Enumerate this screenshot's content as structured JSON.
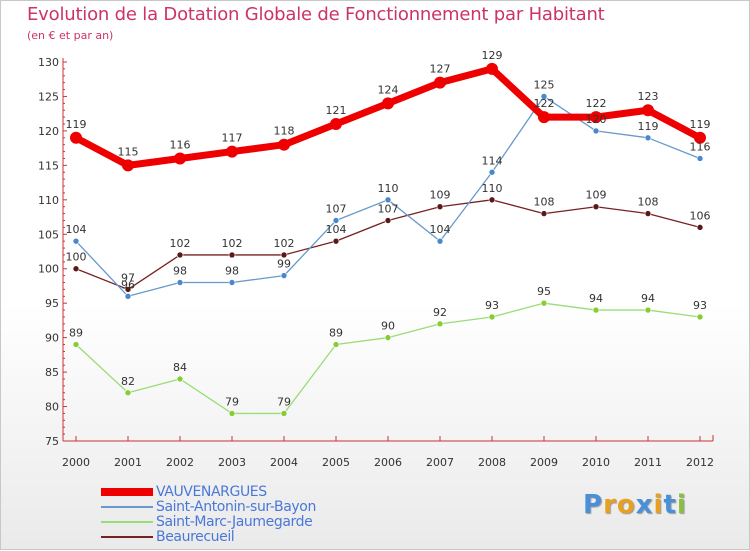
{
  "title": "Evolution de la Dotation Globale de Fonctionnement par Habitant",
  "subtitle": "(en € et par an)",
  "logo": {
    "text": "Proxiti",
    "letters": [
      "P",
      "r",
      "o",
      "x",
      "i",
      "t",
      "i"
    ],
    "colors": [
      "#4a90d9",
      "#e8a020",
      "#e8a020",
      "#4a90d9",
      "#e8a020",
      "#4a90d9",
      "#8ac040"
    ]
  },
  "chart_data": {
    "type": "line",
    "title": "Evolution de la Dotation Globale de Fonctionnement par Habitant",
    "subtitle": "(en € et par an)",
    "xlabel": "",
    "ylabel": "",
    "ylim": [
      75,
      130
    ],
    "yticks": [
      75,
      80,
      85,
      90,
      95,
      100,
      105,
      110,
      115,
      120,
      125,
      130
    ],
    "categories": [
      "2000",
      "2001",
      "2002",
      "2003",
      "2004",
      "2005",
      "2006",
      "2007",
      "2008",
      "2009",
      "2010",
      "2011",
      "2012"
    ],
    "grid": false,
    "legend_position": "bottom-left",
    "series": [
      {
        "name": "VAUVENARGUES",
        "color": "#ee0000",
        "values": [
          119,
          115,
          116,
          117,
          118,
          121,
          124,
          127,
          129,
          122,
          122,
          123,
          119
        ]
      },
      {
        "name": "Saint-Antonin-sur-Bayon",
        "color": "#6699cc",
        "values": [
          104,
          96,
          98,
          98,
          99,
          107,
          110,
          104,
          114,
          125,
          120,
          119,
          116
        ]
      },
      {
        "name": "Saint-Marc-Jaumegarde",
        "color": "#99dd77",
        "values": [
          89,
          82,
          84,
          79,
          79,
          89,
          90,
          92,
          93,
          95,
          94,
          94,
          93
        ]
      },
      {
        "name": "Beaurecueil",
        "color": "#772222",
        "values": [
          100,
          97,
          102,
          102,
          102,
          104,
          107,
          109,
          110,
          108,
          109,
          108,
          106
        ]
      }
    ],
    "point_labels": [
      [
        "119",
        "115",
        "116",
        "117",
        "118",
        "121",
        "124",
        "127",
        "129",
        "122",
        "122",
        "123",
        "119"
      ],
      [
        "104",
        "96",
        "98",
        "98",
        "99",
        "107",
        "110",
        "104",
        "114",
        "125",
        "120",
        "119",
        "116"
      ],
      [
        "89",
        "82",
        "84",
        "79",
        "79",
        "89",
        "90",
        "92",
        "93",
        "95",
        "94",
        "94",
        "93"
      ],
      [
        "100",
        "97",
        "102",
        "102",
        "102",
        "104",
        "107",
        "109",
        "110",
        "108",
        "109",
        "108",
        "106"
      ]
    ]
  }
}
